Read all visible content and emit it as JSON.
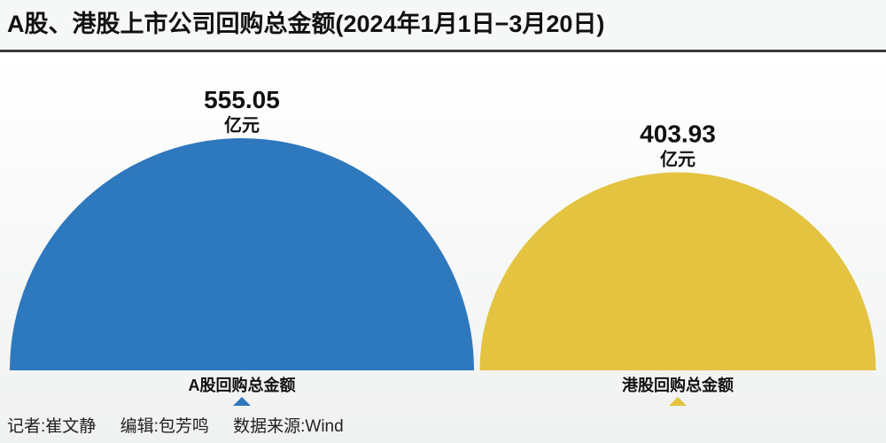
{
  "title": "A股、港股上市公司回购总金额(2024年1月1日−3月20日)",
  "footer": {
    "reporter": "记者:崔文静",
    "editor": "编辑:包芳鸣",
    "source": "数据来源:Wind"
  },
  "chart_data": {
    "type": "semicircle-area",
    "title": "A股、港股上市公司回购总金额(2024年1月1日−3月20日)",
    "unit": "亿元",
    "categories": [
      "A股回购总金额",
      "港股回购总金额"
    ],
    "values": [
      555.05,
      403.93
    ],
    "value_labels": [
      "555.05",
      "403.93"
    ],
    "colors": [
      "#2e78bd",
      "#e3c340"
    ],
    "encoding": "semicircle area proportional to value"
  }
}
